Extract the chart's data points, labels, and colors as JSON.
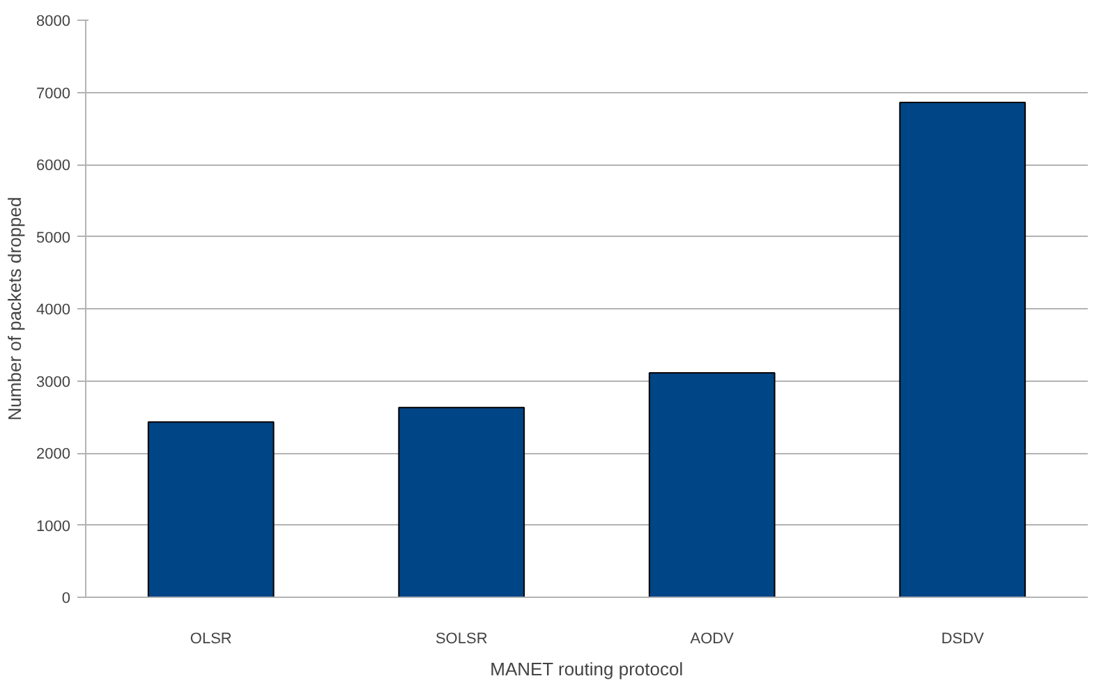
{
  "chart_data": {
    "type": "bar",
    "xlabel": "MANET routing protocol",
    "ylabel": "Number of packets dropped",
    "categories": [
      "OLSR",
      "SOLSR",
      "AODV",
      "DSDV"
    ],
    "values": [
      2430,
      2630,
      3110,
      6860
    ],
    "color": "#004586",
    "ylim": [
      0,
      8000
    ],
    "yticks": [
      0,
      1000,
      2000,
      3000,
      4000,
      5000,
      6000,
      7000,
      8000
    ],
    "grid": "y"
  }
}
